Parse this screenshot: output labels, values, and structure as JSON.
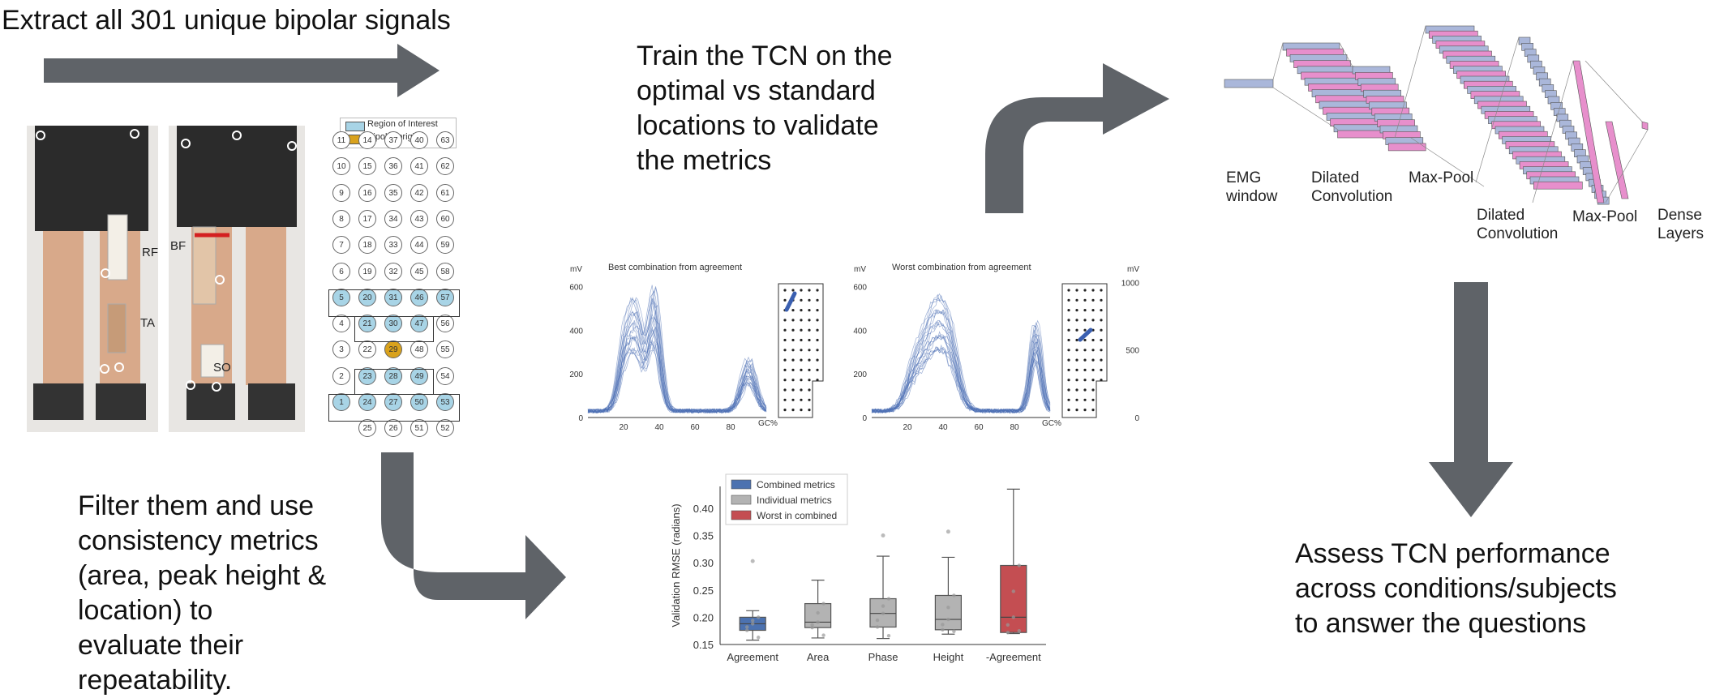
{
  "texts": {
    "extract": "Extract all 301 unique bipolar signals",
    "train": [
      "Train the TCN on the",
      "optimal vs standard",
      "locations to validate",
      "the metrics"
    ],
    "filter": [
      "Filter them and use",
      "consistency metrics",
      "(area, peak height &",
      "location) to",
      "evaluate their",
      "repeatability."
    ],
    "assess": [
      "Assess TCN performance",
      "across conditions/subjects",
      "to answer the questions"
    ]
  },
  "photo_labels": {
    "rf": "RF",
    "ta": "TA",
    "bf": "BF",
    "so": "SO"
  },
  "grid_legend": {
    "roi": "Region of Interest",
    "origin": "Bipolar origin"
  },
  "grid": {
    "rows": [
      [
        11,
        14,
        37,
        40,
        63
      ],
      [
        10,
        15,
        36,
        41,
        62
      ],
      [
        9,
        16,
        35,
        42,
        61
      ],
      [
        8,
        17,
        34,
        43,
        60
      ],
      [
        7,
        18,
        33,
        44,
        59
      ],
      [
        6,
        19,
        32,
        45,
        58
      ],
      [
        5,
        20,
        31,
        46,
        57
      ],
      [
        4,
        21,
        30,
        47,
        56
      ],
      [
        3,
        22,
        29,
        48,
        55
      ],
      [
        2,
        23,
        28,
        49,
        54
      ],
      [
        1,
        24,
        27,
        50,
        53
      ],
      [
        null,
        25,
        26,
        51,
        52
      ]
    ],
    "roi": [
      5,
      20,
      31,
      46,
      57,
      21,
      30,
      47,
      23,
      28,
      49,
      1,
      24,
      27,
      50,
      53
    ],
    "origin": [
      29
    ]
  },
  "emg_charts": [
    {
      "title": "Best combination from agreement",
      "unit": "mV",
      "x_unit": "GC%",
      "xticks": [
        20,
        40,
        60,
        80
      ],
      "yticks": [
        0,
        200,
        400,
        600
      ],
      "ylim": [
        0,
        650
      ]
    },
    {
      "title": "Worst combination from agreement",
      "unit": "mV",
      "x_unit": "GC%",
      "xticks": [
        20,
        40,
        60,
        80
      ],
      "yticks": [
        0,
        200,
        400,
        600
      ],
      "ylim": [
        0,
        650
      ],
      "right_unit": "mV",
      "right_yticks": [
        0,
        500,
        1000
      ]
    }
  ],
  "architecture": {
    "labels": {
      "emg": [
        "EMG",
        "window"
      ],
      "dil1": [
        "Dilated",
        "Convolution"
      ],
      "mp1": [
        "Max-Pool"
      ],
      "dil2": [
        "Dilated",
        "Convolution"
      ],
      "mp2": [
        "Max-Pool"
      ],
      "dense": [
        "Dense",
        "Layers"
      ]
    },
    "colors": {
      "blue": "#aab7da",
      "pink": "#e78fcc"
    }
  },
  "chart_data": {
    "type": "box",
    "ylabel": "Validation RMSE (radians)",
    "ylim": [
      0.15,
      0.44
    ],
    "yticks": [
      "0.15",
      "0.20",
      "0.25",
      "0.30",
      "0.35",
      "0.40"
    ],
    "categories": [
      "Agreement",
      "Area",
      "Phase",
      "Height",
      "-Agreement"
    ],
    "legend": [
      {
        "label": "Combined metrics",
        "color": "#4c72b0"
      },
      {
        "label": "Individual metrics",
        "color": "#b3b3b3"
      },
      {
        "label": "Worst in combined",
        "color": "#c44e52"
      }
    ],
    "boxes": [
      {
        "category": "Agreement",
        "group": "Combined metrics",
        "min": 0.158,
        "q1": 0.176,
        "median": 0.188,
        "q3": 0.2,
        "max": 0.212,
        "outliers": [
          0.303
        ]
      },
      {
        "category": "Area",
        "group": "Individual metrics",
        "min": 0.162,
        "q1": 0.181,
        "median": 0.191,
        "q3": 0.225,
        "max": 0.268,
        "outliers": []
      },
      {
        "category": "Phase",
        "group": "Individual metrics",
        "min": 0.161,
        "q1": 0.182,
        "median": 0.207,
        "q3": 0.234,
        "max": 0.312,
        "outliers": [
          0.35
        ]
      },
      {
        "category": "Height",
        "group": "Individual metrics",
        "min": 0.169,
        "q1": 0.177,
        "median": 0.196,
        "q3": 0.24,
        "max": 0.31,
        "outliers": [
          0.357
        ]
      },
      {
        "category": "-Agreement",
        "group": "Worst in combined",
        "min": 0.17,
        "q1": 0.172,
        "median": 0.2,
        "q3": 0.295,
        "max": 0.435,
        "outliers": []
      }
    ]
  }
}
